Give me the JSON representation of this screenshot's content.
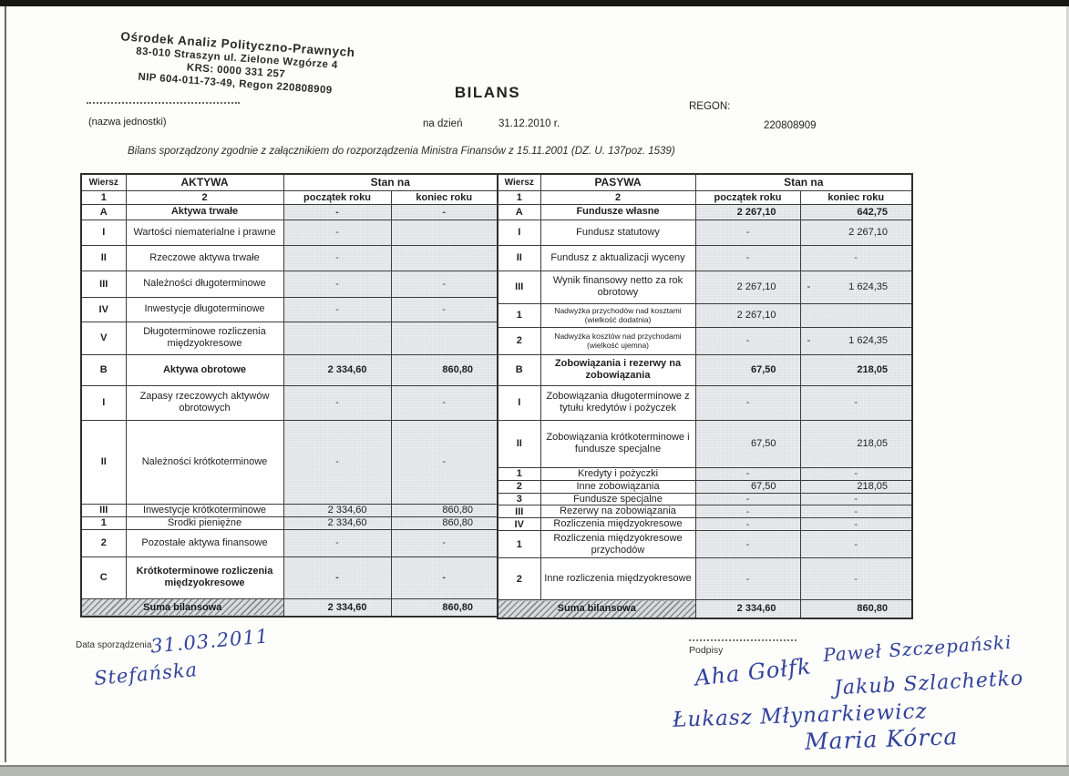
{
  "stamp": {
    "line1": "Ośrodek Analiz Polityczno-Prawnych",
    "line2": "83-010 Straszyn ul. Zielone Wzgórze 4",
    "line3": "KRS: 0000 331 257",
    "line4": "NIP 604-011-73-49, Regon 220808909"
  },
  "header": {
    "title": "BILANS",
    "name_unit_label": "(nazwa jednostki)",
    "as_of_label": "na dzień",
    "as_of_date": "31.12.2010 r.",
    "regon_label": "REGON:",
    "regon_value": "220808909",
    "subtitle": "Bilans sporządzony zgodnie z załącznikiem do rozporządzenia Ministra Finansów z 15.11.2001 (DZ. U. 137poz. 1539)"
  },
  "table": {
    "col_headers": {
      "wiersz": "Wiersz",
      "aktywa": "AKTYWA",
      "pasywa": "PASYWA",
      "stan_na": "Stan na",
      "col1": "1",
      "col2": "2",
      "start": "początek roku",
      "end": "koniec roku"
    },
    "suma_label": "Suma bilansowa",
    "aktywa_rows": [
      {
        "w": "A",
        "label": "Aktywa trwałe",
        "start": "-",
        "end": "-",
        "bold": true
      },
      {
        "w": "I",
        "label": "Wartości niematerialne i prawne",
        "start": "-",
        "end": ""
      },
      {
        "w": "II",
        "label": "Rzeczowe aktywa trwałe",
        "start": "-",
        "end": ""
      },
      {
        "w": "III",
        "label": "Należności długoterminowe",
        "start": "-",
        "end": "-"
      },
      {
        "w": "IV",
        "label": "Inwestycje długoterminowe",
        "start": "-",
        "end": "-"
      },
      {
        "w": "V",
        "label": "Długoterminowe rozliczenia międzyokresowe",
        "start": "",
        "end": ""
      },
      {
        "w": "B",
        "label": "Aktywa obrotowe",
        "start": "2 334,60",
        "end": "860,80",
        "bold": true
      },
      {
        "w": "I",
        "label": "Zapasy rzeczowych aktywów obrotowych",
        "start": "-",
        "end": "-"
      },
      {
        "w": "II",
        "label": "Należności krótkoterminowe",
        "start": "-",
        "end": "-"
      },
      {
        "w": "III",
        "label": "Inwestycje krótkoterminowe",
        "start": "2 334,60",
        "end": "860,80"
      },
      {
        "w": "1",
        "label": "Środki pieniężne",
        "start": "2 334,60",
        "end": "860,80"
      },
      {
        "w": "2",
        "label": "Pozostałe aktywa finansowe",
        "start": "-",
        "end": "-"
      },
      {
        "w": "C",
        "label": "Krótkoterminowe rozliczenia międzyokresowe",
        "start": "-",
        "end": "-",
        "bold": true
      }
    ],
    "aktywa_suma": {
      "start": "2 334,60",
      "end": "860,80"
    },
    "pasywa_rows": [
      {
        "w": "A",
        "label": "Fundusze własne",
        "start": "2 267,10",
        "end": "642,75",
        "bold": true
      },
      {
        "w": "I",
        "label": "Fundusz statutowy",
        "start": "-",
        "end": "2 267,10"
      },
      {
        "w": "II",
        "label": "Fundusz z aktualizacji wyceny",
        "start": "-",
        "end": "-"
      },
      {
        "w": "III",
        "label": "Wynik finansowy netto za rok obrotowy",
        "start": "2 267,10",
        "end": "- 1 624,35"
      },
      {
        "w": "1",
        "label": "Nadwyżka przychodów nad kosztami (wielkość dodatnia)",
        "start": "2 267,10",
        "end": "",
        "small": true
      },
      {
        "w": "2",
        "label": "Nadwyżka kosztów nad przychodami (wielkość ujemna)",
        "start": "-",
        "end": "- 1 624,35",
        "small": true
      },
      {
        "w": "B",
        "label": "Zobowiązania i rezerwy na zobowiązania",
        "start": "67,50",
        "end": "218,05",
        "bold": true
      },
      {
        "w": "I",
        "label": "Zobowiązania długoterminowe z tytułu kredytów i pożyczek",
        "start": "-",
        "end": "-"
      },
      {
        "w": "II",
        "label": "Zobowiązania krótkoterminowe i fundusze specjalne",
        "start": "67,50",
        "end": "218,05"
      },
      {
        "w": "1",
        "label": "Kredyty i pożyczki",
        "start": "-",
        "end": "-"
      },
      {
        "w": "2",
        "label": "Inne zobowiązania",
        "start": "67,50",
        "end": "218,05"
      },
      {
        "w": "3",
        "label": "Fundusze specjalne",
        "start": "-",
        "end": "-"
      },
      {
        "w": "III",
        "label": "Rezerwy na zobowiązania",
        "start": "-",
        "end": "-"
      },
      {
        "w": "IV",
        "label": "Rozliczenia międzyokresowe",
        "start": "-",
        "end": "-"
      },
      {
        "w": "1",
        "label": "Rozliczenia międzyokresowe przychodów",
        "start": "-",
        "end": "-"
      },
      {
        "w": "2",
        "label": "Inne rozliczenia międzyokresowe",
        "start": "-",
        "end": "-"
      }
    ],
    "pasywa_suma": {
      "start": "2 334,60",
      "end": "860,80"
    }
  },
  "footer": {
    "date_label": "Data sporządzenia",
    "date_handwritten": "31.03.2011",
    "name_handwritten": "Stefańska",
    "signatures_label": "Podpisy",
    "signatures": [
      "Aha Gołfk",
      "Paweł Szczepański",
      "Jakub Szlachetko",
      "Łukasz Młynarkiewicz",
      "Maria Kórca"
    ]
  },
  "colors": {
    "ink": "#1f1f1f",
    "handwriting_blue": "#32439b",
    "shaded_cell": "#e9ebec"
  }
}
